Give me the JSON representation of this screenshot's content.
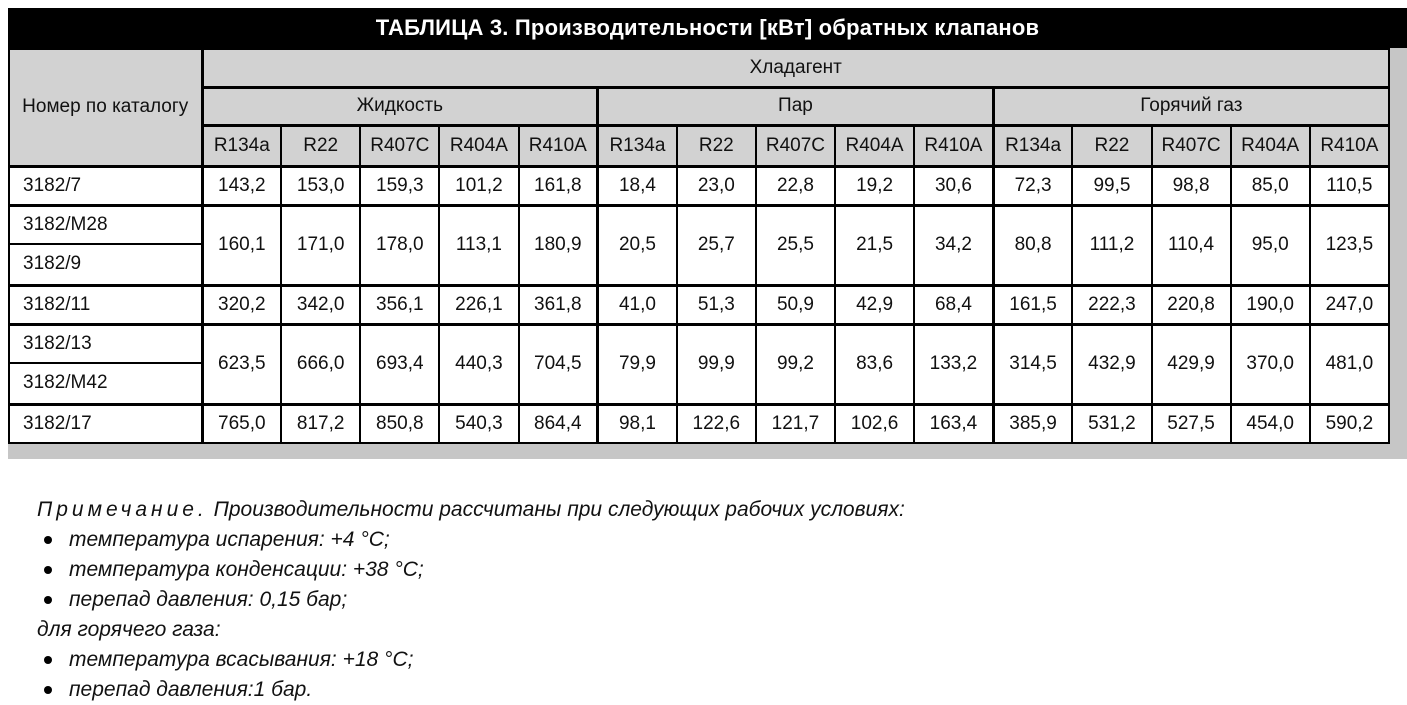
{
  "title": "ТАБЛИЦА 3. Производительности [кВт] обратных клапанов",
  "table": {
    "corner_label": "Номер по каталогу",
    "refrigerant_group_header": "Хладагент",
    "groups": [
      "Жидкость",
      "Пар",
      "Горячий газ"
    ],
    "refrigerants": [
      "R134a",
      "R22",
      "R407C",
      "R404A",
      "R410A"
    ],
    "rows": [
      {
        "labels": [
          "3182/7"
        ],
        "values": [
          "143,2",
          "153,0",
          "159,3",
          "101,2",
          "161,8",
          "18,4",
          "23,0",
          "22,8",
          "19,2",
          "30,6",
          "72,3",
          "99,5",
          "98,8",
          "85,0",
          "110,5"
        ]
      },
      {
        "labels": [
          "3182/M28",
          "3182/9"
        ],
        "values": [
          "160,1",
          "171,0",
          "178,0",
          "113,1",
          "180,9",
          "20,5",
          "25,7",
          "25,5",
          "21,5",
          "34,2",
          "80,8",
          "111,2",
          "110,4",
          "95,0",
          "123,5"
        ]
      },
      {
        "labels": [
          "3182/11"
        ],
        "values": [
          "320,2",
          "342,0",
          "356,1",
          "226,1",
          "361,8",
          "41,0",
          "51,3",
          "50,9",
          "42,9",
          "68,4",
          "161,5",
          "222,3",
          "220,8",
          "190,0",
          "247,0"
        ]
      },
      {
        "labels": [
          "3182/13",
          "3182/M42"
        ],
        "values": [
          "623,5",
          "666,0",
          "693,4",
          "440,3",
          "704,5",
          "79,9",
          "99,9",
          "99,2",
          "83,6",
          "133,2",
          "314,5",
          "432,9",
          "429,9",
          "370,0",
          "481,0"
        ]
      },
      {
        "labels": [
          "3182/17"
        ],
        "values": [
          "765,0",
          "817,2",
          "850,8",
          "540,3",
          "864,4",
          "98,1",
          "122,6",
          "121,7",
          "102,6",
          "163,4",
          "385,9",
          "531,2",
          "527,5",
          "454,0",
          "590,2"
        ]
      }
    ]
  },
  "notes": {
    "heading": "Примечание.",
    "intro": "Производительности рассчитаны при следующих рабочих условиях:",
    "items1": [
      "температура испарения: +4 °С;",
      "температура конденсации: +38 °С;",
      "перепад давления: 0,15 бар;"
    ],
    "subheading": "для горячего газа:",
    "items2": [
      "температура всасывания: +18 °С;",
      "перепад давления:1 бар."
    ]
  },
  "colors": {
    "title_bg": "#000000",
    "title_fg": "#ffffff",
    "header_bg": "#d2d2d2",
    "shadow_band": "#c6c6c6"
  }
}
